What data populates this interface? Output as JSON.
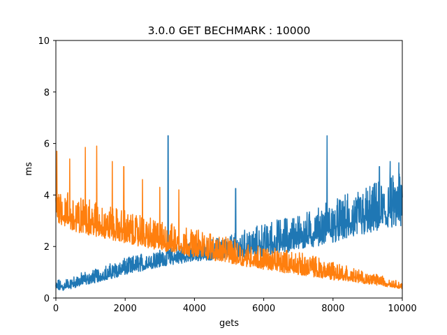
{
  "chart_data": {
    "type": "line",
    "title": "3.0.0 GET BECHMARK : 10000",
    "xlabel": "gets",
    "ylabel": "ms",
    "xlim": [
      0,
      10000
    ],
    "ylim": [
      0,
      10
    ],
    "x_ticks": [
      0,
      2000,
      4000,
      6000,
      8000,
      10000
    ],
    "y_ticks": [
      0,
      2,
      4,
      6,
      8,
      10
    ],
    "grid": false,
    "series": [
      {
        "color": "#1f77b4",
        "x": [
          0,
          250,
          500,
          750,
          1000,
          1250,
          1500,
          1750,
          2000,
          2250,
          2500,
          2750,
          3000,
          3250,
          3500,
          3750,
          4000,
          4250,
          4500,
          4750,
          5000,
          5250,
          5500,
          5750,
          6000,
          6250,
          6500,
          6750,
          7000,
          7250,
          7500,
          7750,
          8000,
          8250,
          8500,
          8750,
          9000,
          9250,
          9500,
          9750,
          10000
        ],
        "baseline": [
          0.25,
          0.3,
          0.38,
          0.47,
          0.55,
          0.62,
          0.72,
          0.8,
          0.88,
          0.97,
          1.05,
          1.13,
          1.2,
          1.26,
          1.32,
          1.37,
          1.41,
          1.45,
          1.47,
          1.5,
          1.52,
          1.55,
          1.57,
          1.6,
          1.63,
          1.68,
          1.73,
          1.78,
          1.85,
          1.93,
          2.0,
          2.07,
          2.15,
          2.23,
          2.3,
          2.38,
          2.46,
          2.53,
          2.6,
          2.67,
          2.72
        ],
        "upper": [
          0.7,
          0.75,
          0.85,
          1.0,
          1.1,
          1.2,
          1.3,
          1.45,
          1.55,
          1.65,
          1.75,
          1.82,
          1.9,
          2.0,
          2.05,
          2.1,
          2.15,
          2.2,
          2.3,
          2.4,
          2.5,
          2.6,
          2.7,
          2.8,
          2.9,
          3.0,
          3.1,
          3.2,
          3.3,
          3.4,
          3.55,
          3.7,
          3.8,
          3.95,
          4.1,
          4.2,
          4.35,
          4.5,
          4.6,
          4.8,
          5.0
        ],
        "spikes": [
          [
            3240,
            6.3
          ],
          [
            7830,
            6.3
          ],
          [
            5190,
            4.25
          ],
          [
            9650,
            5.3
          ],
          [
            9900,
            5.25
          ],
          [
            9340,
            5.1
          ]
        ]
      },
      {
        "color": "#ff7f0e",
        "x": [
          0,
          250,
          500,
          750,
          1000,
          1250,
          1500,
          1750,
          2000,
          2250,
          2500,
          2750,
          3000,
          3250,
          3500,
          3750,
          4000,
          4250,
          4500,
          4750,
          5000,
          5250,
          5500,
          5750,
          6000,
          6250,
          6500,
          6750,
          7000,
          7250,
          7500,
          7750,
          8000,
          8250,
          8500,
          8750,
          9000,
          9250,
          9500,
          9750,
          10000
        ],
        "baseline": [
          2.95,
          2.75,
          2.6,
          2.5,
          2.42,
          2.35,
          2.28,
          2.2,
          2.12,
          2.05,
          1.98,
          1.9,
          1.83,
          1.76,
          1.7,
          1.64,
          1.58,
          1.52,
          1.46,
          1.4,
          1.34,
          1.28,
          1.22,
          1.16,
          1.1,
          1.05,
          1.0,
          0.95,
          0.9,
          0.85,
          0.8,
          0.75,
          0.7,
          0.66,
          0.62,
          0.58,
          0.54,
          0.5,
          0.45,
          0.4,
          0.35
        ],
        "upper": [
          4.5,
          4.2,
          4.0,
          3.9,
          3.8,
          3.7,
          3.6,
          3.5,
          3.4,
          3.3,
          3.2,
          3.1,
          3.0,
          2.95,
          2.85,
          2.75,
          2.7,
          2.6,
          2.5,
          2.45,
          2.35,
          2.25,
          2.15,
          2.05,
          2.0,
          1.95,
          1.9,
          1.85,
          1.8,
          1.7,
          1.65,
          1.55,
          1.45,
          1.35,
          1.2,
          1.1,
          1.0,
          0.95,
          0.85,
          0.75,
          0.6
        ],
        "spikes": [
          [
            30,
            5.7
          ],
          [
            1180,
            5.9
          ],
          [
            850,
            5.85
          ],
          [
            400,
            5.4
          ],
          [
            1630,
            5.3
          ],
          [
            1960,
            5.1
          ],
          [
            2500,
            4.6
          ],
          [
            3000,
            4.3
          ],
          [
            3550,
            4.2
          ]
        ]
      }
    ]
  }
}
